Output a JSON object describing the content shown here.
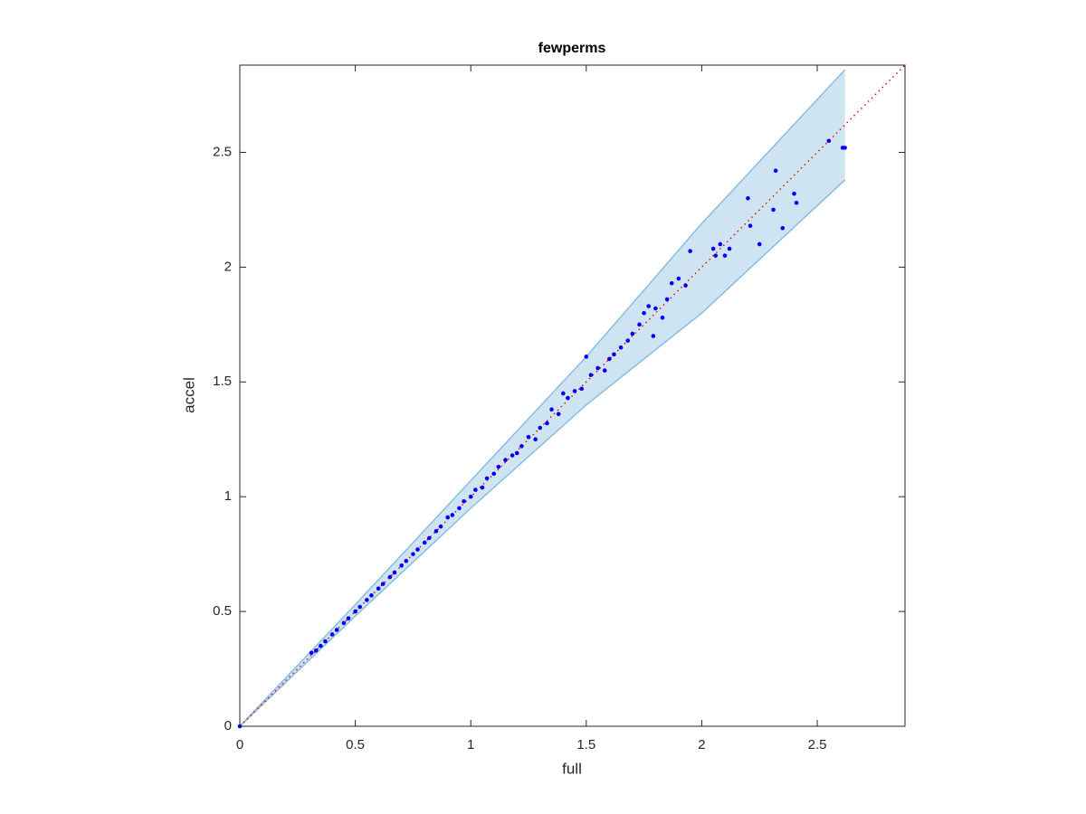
{
  "chart_data": {
    "type": "scatter",
    "title": "fewperms",
    "x_label": "full",
    "y_label": "accel",
    "xlim": [
      0,
      2.88
    ],
    "ylim": [
      0,
      2.88
    ],
    "xticks": [
      0,
      0.5,
      1,
      1.5,
      2,
      2.5
    ],
    "yticks": [
      0,
      0.5,
      1,
      1.5,
      2,
      2.5
    ],
    "grid": false,
    "band": {
      "color": "#cfe4f3",
      "edge_color": "#86bde0",
      "x": [
        0,
        0.5,
        1,
        1.5,
        2,
        2.62
      ],
      "upper": [
        0,
        0.53,
        1.07,
        1.61,
        2.19,
        2.86
      ],
      "lower": [
        0,
        0.48,
        0.95,
        1.4,
        1.8,
        2.38
      ]
    },
    "reference_line": {
      "color": "#ff0000",
      "x": [
        0,
        2.88
      ],
      "values": [
        0,
        2.88
      ]
    },
    "series": [
      {
        "color": "#0000ff",
        "x": [
          2.61,
          2.62,
          2.55,
          2.35,
          2.41,
          2.4,
          2.32,
          2.31,
          2.25,
          2.2,
          2.21,
          2.12,
          2.1,
          2.08,
          2.06,
          2.05,
          1.95,
          1.93,
          1.9,
          1.87,
          1.85,
          1.83,
          1.8,
          1.79,
          1.77,
          1.75,
          1.73,
          1.7,
          1.68,
          1.65,
          1.62,
          1.6,
          1.58,
          1.55,
          1.52,
          1.5,
          1.48,
          1.45,
          1.42,
          1.4,
          1.38,
          1.35,
          1.33,
          1.3,
          1.28,
          1.25,
          1.22,
          1.2,
          1.18,
          1.15,
          1.12,
          1.1,
          1.07,
          1.05,
          1.02,
          1.0,
          0.97,
          0.95,
          0.92,
          0.9,
          0.87,
          0.85,
          0.82,
          0.8,
          0.77,
          0.75,
          0.72,
          0.7,
          0.67,
          0.65,
          0.62,
          0.6,
          0.57,
          0.55,
          0.52,
          0.5,
          0.47,
          0.45,
          0.42,
          0.4,
          0.37,
          0.35,
          0.33,
          0.31,
          0
        ],
        "values": [
          2.52,
          2.52,
          2.55,
          2.17,
          2.28,
          2.32,
          2.42,
          2.25,
          2.1,
          2.3,
          2.18,
          2.08,
          2.05,
          2.1,
          2.05,
          2.08,
          2.07,
          1.92,
          1.95,
          1.93,
          1.86,
          1.78,
          1.82,
          1.7,
          1.83,
          1.8,
          1.75,
          1.71,
          1.68,
          1.65,
          1.62,
          1.6,
          1.55,
          1.56,
          1.53,
          1.61,
          1.47,
          1.46,
          1.43,
          1.45,
          1.36,
          1.38,
          1.32,
          1.3,
          1.25,
          1.26,
          1.22,
          1.19,
          1.18,
          1.16,
          1.13,
          1.1,
          1.08,
          1.04,
          1.03,
          1.0,
          0.98,
          0.95,
          0.92,
          0.91,
          0.87,
          0.85,
          0.82,
          0.8,
          0.77,
          0.75,
          0.72,
          0.7,
          0.67,
          0.65,
          0.62,
          0.6,
          0.57,
          0.55,
          0.52,
          0.5,
          0.47,
          0.45,
          0.42,
          0.4,
          0.37,
          0.35,
          0.33,
          0.32,
          0
        ]
      }
    ]
  }
}
